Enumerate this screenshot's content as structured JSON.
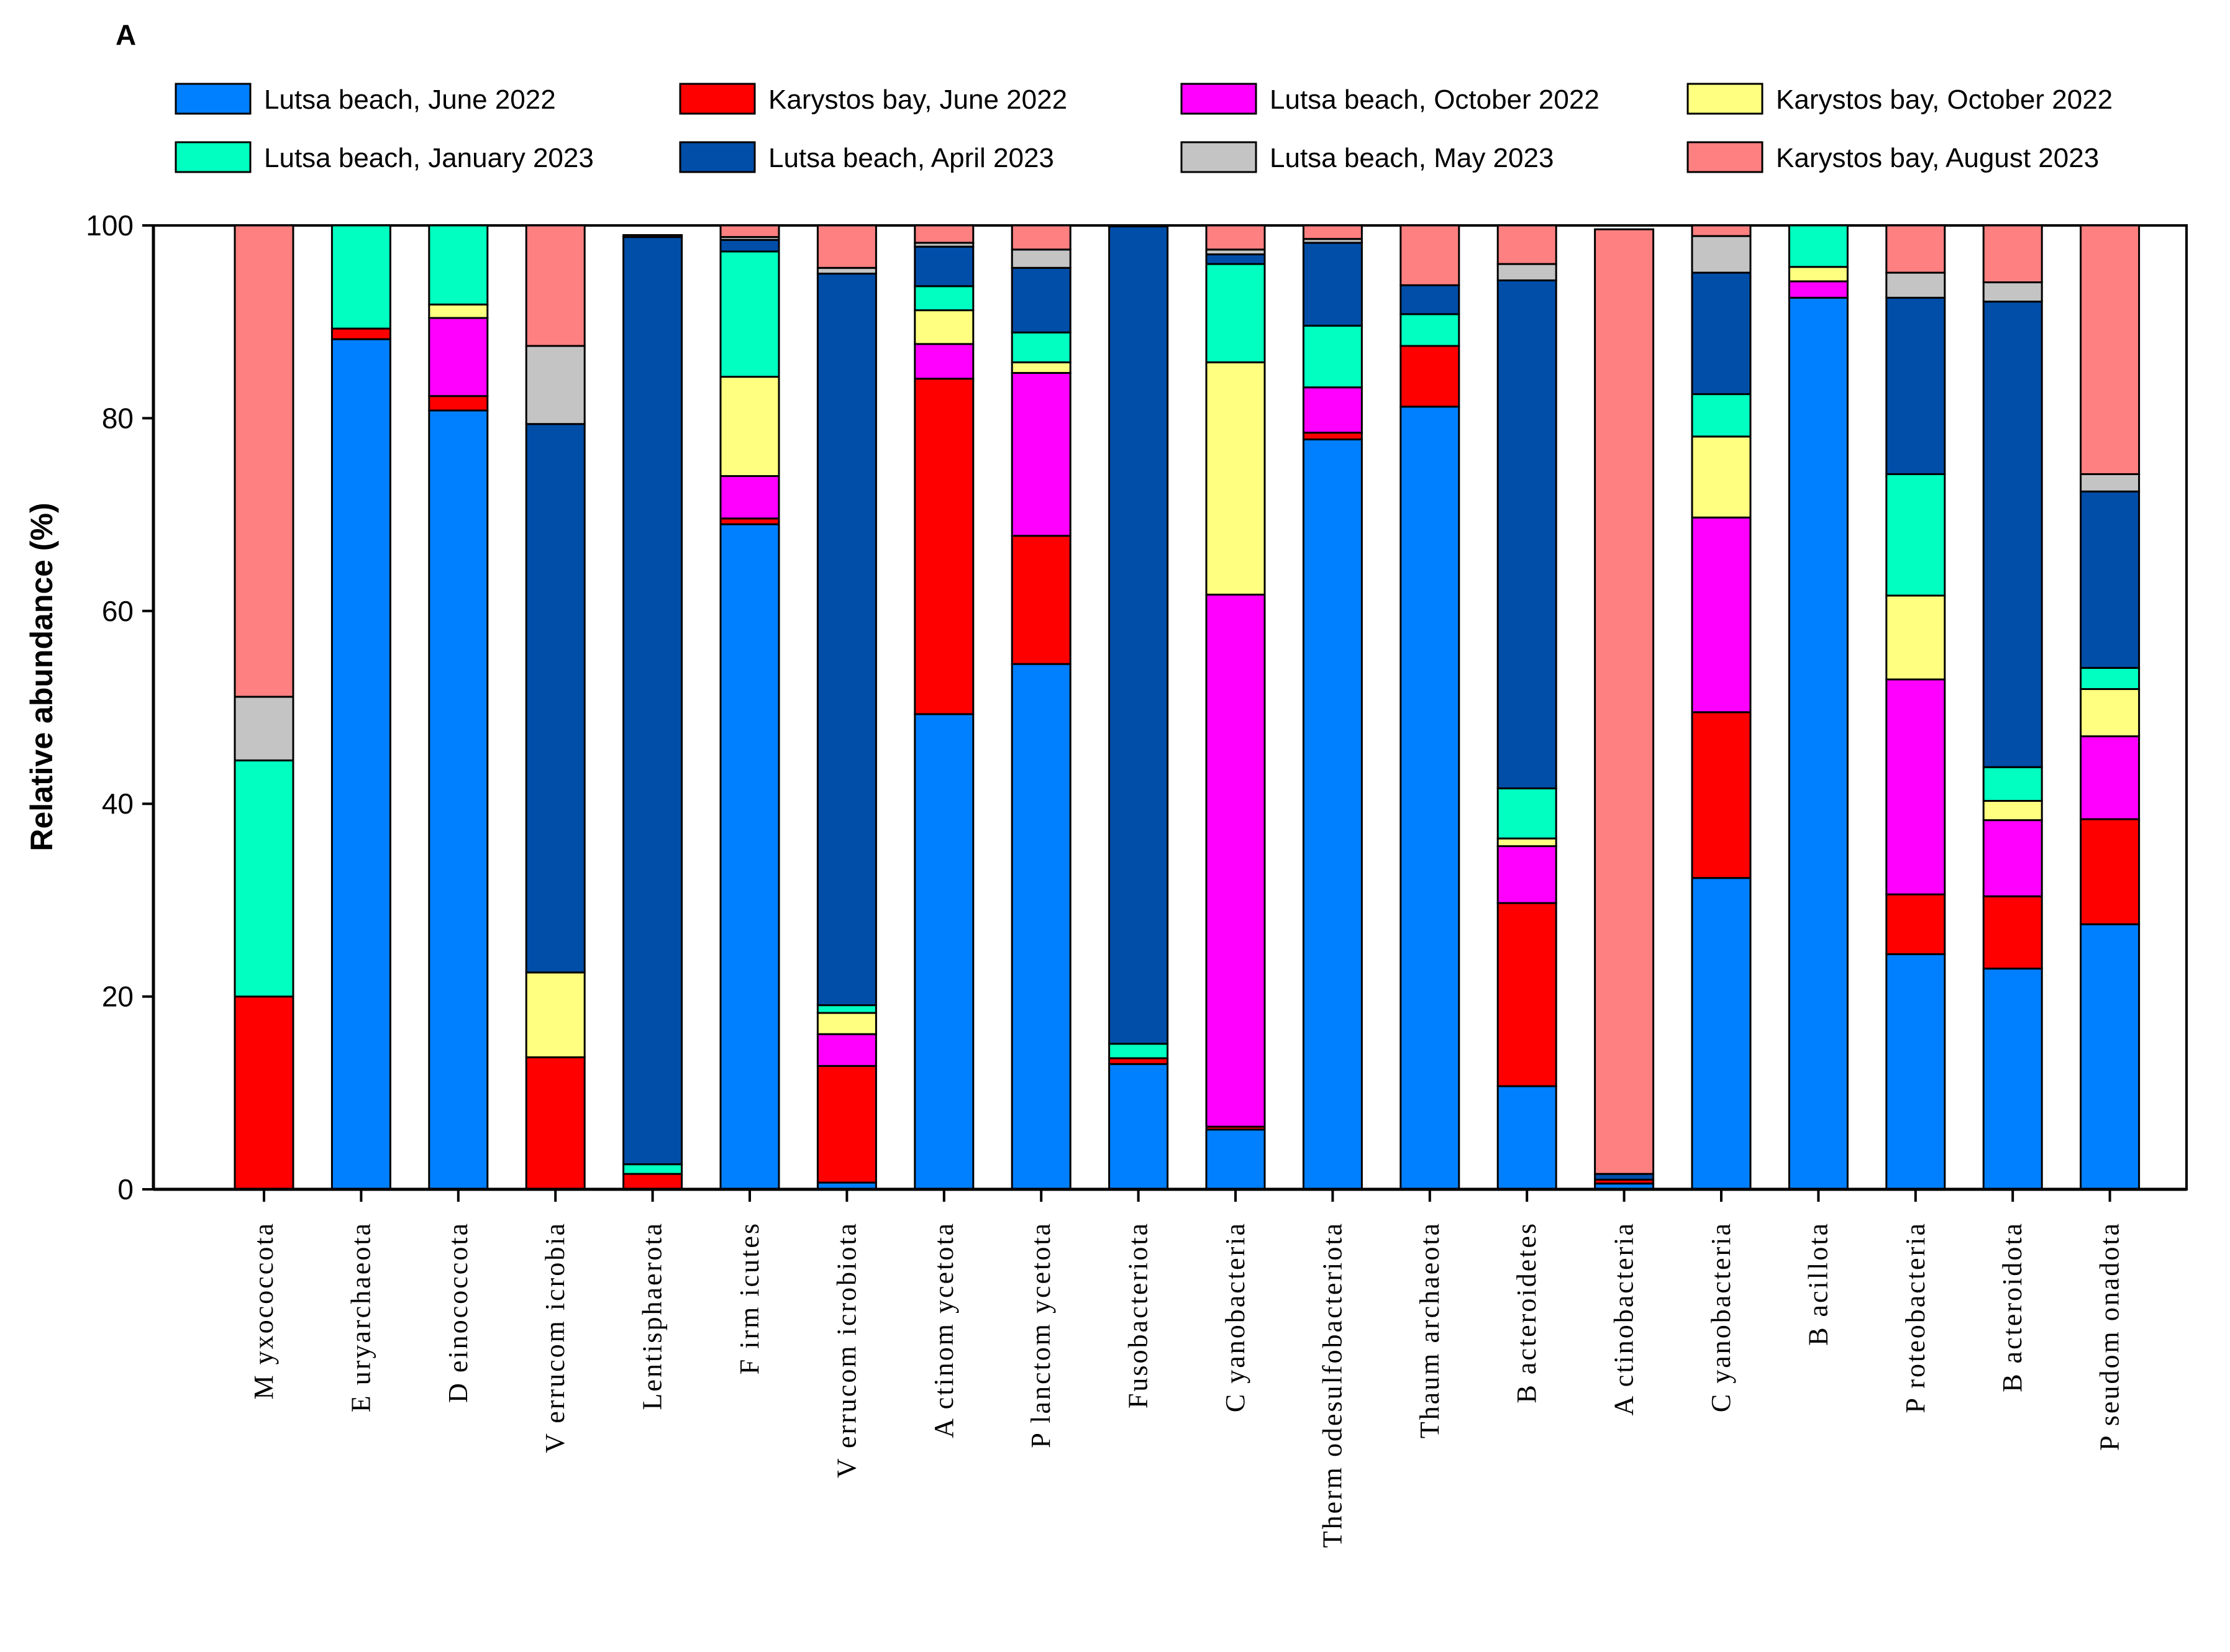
{
  "chart_data": {
    "type": "bar",
    "stacked": true,
    "panel_label": "A",
    "ylabel": "Relative abundance (%)",
    "xlabel": "",
    "ylim": [
      0,
      100
    ],
    "yticks": [
      0,
      20,
      40,
      60,
      80,
      100
    ],
    "legend_position": "top",
    "categories": [
      "Myxococcota",
      "Euryarchaeota",
      "Deinococcota",
      "Verrucomicrobia",
      "Lentisphaerota",
      "Firmicutes",
      "Verrucomicrobiota",
      "Actinomycetota",
      "Planctomycetota",
      "Fusobacteriota",
      "Cyanobacteria",
      "Thermodesulfobacteriota",
      "Thaumarchaeota",
      "Bacteroidetes",
      "Actinobacteria",
      "Cyanobacteria",
      "Bacillota",
      "Proteobacteria",
      "Bacteroidota",
      "Pseudomonadota"
    ],
    "category_labels": [
      "M yxococcota",
      "E uryarchaeota",
      "D einococcota",
      "V errucom icrobia",
      "Lentisphaerota",
      "F irm icutes",
      "V errucom icrobiota",
      "A ctinom ycetota",
      "P lanctom ycetota",
      "Fusobacteriota",
      "C yanobacteria",
      "Therm odesulfobacteriota",
      "Thaum archaeota",
      "B acteroidetes",
      "A ctinobacteria",
      "C yanobacteria",
      "B acillota",
      "P roteobacteria",
      "B acteroidota",
      "P seudom onadota"
    ],
    "series": [
      {
        "name": "Lutsa beach, June 2022",
        "color": "#0080FF",
        "values": [
          0,
          88.2,
          80.8,
          0,
          0,
          69.0,
          0.7,
          49.3,
          54.5,
          13.0,
          6.2,
          77.8,
          81.2,
          10.7,
          0.6,
          32.3,
          92.5,
          24.4,
          22.9,
          27.5
        ]
      },
      {
        "name": "Karystos bay, June 2022",
        "color": "#FF0000",
        "values": [
          20.0,
          1.1,
          1.5,
          13.7,
          1.6,
          0.6,
          12.1,
          34.8,
          13.3,
          0.6,
          0.3,
          0.7,
          6.3,
          19.0,
          0.4,
          17.2,
          0,
          6.2,
          7.5,
          10.9
        ]
      },
      {
        "name": "Lutsa beach, October 2022",
        "color": "#FF00FF",
        "values": [
          0,
          0,
          8.1,
          0,
          0,
          4.4,
          3.3,
          3.6,
          16.9,
          0,
          55.2,
          4.7,
          0,
          5.9,
          0,
          20.2,
          1.7,
          22.3,
          7.9,
          8.6
        ]
      },
      {
        "name": "Karystos bay, October 2022",
        "color": "#FFFF80",
        "values": [
          0,
          0,
          1.4,
          8.8,
          0,
          10.3,
          2.2,
          3.5,
          1.1,
          0,
          24.1,
          0,
          0,
          0.8,
          0,
          8.4,
          1.5,
          8.7,
          2.0,
          4.9
        ]
      },
      {
        "name": "Lutsa beach, January 2023",
        "color": "#00FFC0",
        "values": [
          24.5,
          10.7,
          8.2,
          0,
          1.0,
          13.0,
          0.8,
          2.5,
          3.1,
          1.5,
          10.2,
          6.4,
          3.3,
          5.2,
          0,
          4.4,
          4.3,
          12.6,
          3.5,
          2.2
        ]
      },
      {
        "name": "Lutsa beach, April 2023",
        "color": "#004EA8",
        "values": [
          0,
          0,
          0,
          56.9,
          96.2,
          1.2,
          75.9,
          4.1,
          6.7,
          84.8,
          1.0,
          8.6,
          3.0,
          52.7,
          0.6,
          12.6,
          0,
          18.3,
          48.3,
          18.3
        ]
      },
      {
        "name": "Lutsa beach, May 2023",
        "color": "#C4C4C4",
        "values": [
          6.6,
          0,
          0,
          8.1,
          0.2,
          0.3,
          0.6,
          0.4,
          1.9,
          0,
          0.5,
          0.4,
          0,
          1.7,
          0,
          3.8,
          0,
          2.6,
          2.0,
          1.8
        ]
      },
      {
        "name": "Karystos bay, August 2023",
        "color": "#FF8080",
        "values": [
          48.9,
          0,
          0,
          12.5,
          0,
          1.2,
          4.4,
          1.8,
          2.5,
          0.1,
          2.5,
          1.4,
          6.2,
          4.0,
          98.0,
          1.1,
          0,
          4.9,
          5.9,
          25.8
        ]
      }
    ]
  }
}
